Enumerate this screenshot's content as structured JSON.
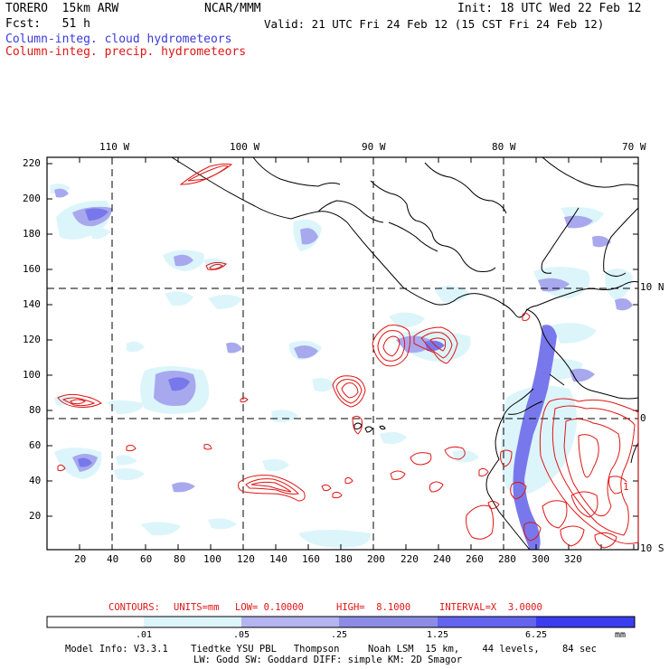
{
  "header": {
    "model": "TORERO  15km ARW",
    "org": "NCAR/MMM",
    "init": "Init: 18 UTC Wed 22 Feb 12",
    "fcst": "Fcst:   51 h",
    "valid": "Valid: 21 UTC Fri 24 Feb 12 (15 CST Fri 24 Feb 12)",
    "field1": "Column-integ. cloud hydrometeors",
    "field2": "Column-integ. precip. hydrometeors"
  },
  "map": {
    "lon_labels": [
      "110 W",
      "100 W",
      "90 W",
      "80 W",
      "70 W"
    ],
    "lat_labels": [
      "10 N",
      "0",
      "10 S"
    ],
    "y_ticks": [
      "220",
      "200",
      "180",
      "160",
      "140",
      "120",
      "100",
      "80",
      "60",
      "40",
      "20"
    ],
    "x_ticks": [
      "20",
      "40",
      "60",
      "80",
      "100",
      "120",
      "140",
      "160",
      "180",
      "200",
      "220",
      "240",
      "260",
      "280",
      "300",
      "320"
    ],
    "contour_label": "1"
  },
  "contours_info": {
    "label": "CONTOURS:",
    "units": "UNITS=mm",
    "low": "LOW= 0.10000",
    "high": "HIGH=  8.1000",
    "interval": "INTERVAL=X  3.0000"
  },
  "colorbar": {
    "ticks": [
      ".01",
      ".05",
      ".25",
      "1.25",
      "6.25"
    ],
    "unit": "mm",
    "colors": [
      "#ffffff",
      "#dcf5fb",
      "#b4b4f0",
      "#8c8ce6",
      "#6464ef",
      "#3c3cf0"
    ]
  },
  "footer": {
    "line1": "Model Info: V3.3.1    Tiedtke YSU PBL   Thompson     Noah LSM  15 km,    44 levels,    84 sec",
    "line2": "LW: Godd SW: Goddard DIFF: simple KM: 2D Smagor"
  }
}
